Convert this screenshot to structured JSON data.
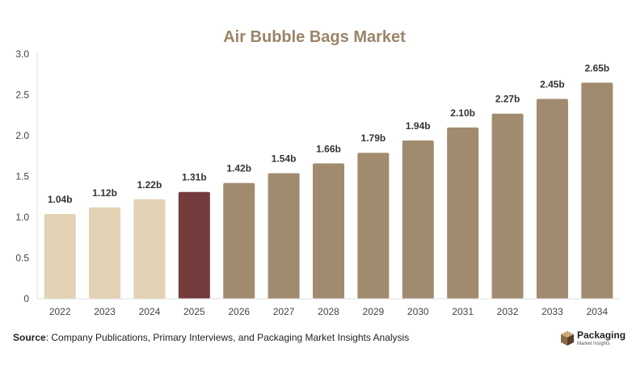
{
  "chart_data": {
    "type": "bar",
    "title": "Air Bubble Bags Market",
    "categories": [
      "2022",
      "2023",
      "2024",
      "2025",
      "2026",
      "2027",
      "2028",
      "2029",
      "2030",
      "2031",
      "2032",
      "2033",
      "2034"
    ],
    "values": [
      1.04,
      1.12,
      1.22,
      1.31,
      1.42,
      1.54,
      1.66,
      1.79,
      1.94,
      2.1,
      2.27,
      2.45,
      2.65
    ],
    "data_labels": [
      "1.04b",
      "1.12b",
      "1.22b",
      "1.31b",
      "1.42b",
      "1.54b",
      "1.66b",
      "1.79b",
      "1.94b",
      "2.10b",
      "2.27b",
      "2.45b",
      "2.65b"
    ],
    "y_ticks": [
      "0",
      "0.5",
      "1.0",
      "1.5",
      "2.0",
      "2.5",
      "3.0"
    ],
    "ylim": [
      0,
      3.0
    ],
    "grid": false,
    "legend": "none",
    "colors": {
      "historical": "#e3d2b4",
      "current": "#733c3c",
      "forecast": "#a18b6e",
      "title": "#9c8468"
    },
    "bar_groups": [
      "historical",
      "historical",
      "historical",
      "current",
      "forecast",
      "forecast",
      "forecast",
      "forecast",
      "forecast",
      "forecast",
      "forecast",
      "forecast",
      "forecast"
    ]
  },
  "footer": {
    "source_label": "Source",
    "source_text": ": Company Publications, Primary Interviews, and Packaging Market Insights Analysis"
  },
  "logo": {
    "name": "Packaging",
    "tagline": "Market Insights",
    "icon": "box-icon"
  }
}
